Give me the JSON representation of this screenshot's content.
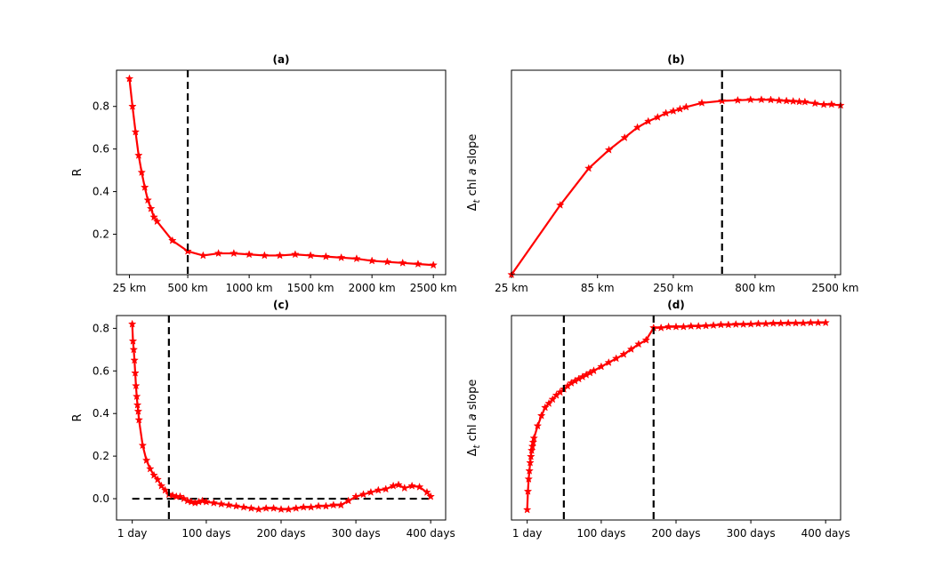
{
  "chart_data": [
    {
      "type": "line",
      "title": "(a)",
      "ylabel": "R",
      "xlabel": "",
      "x_scale": "linear",
      "xlim": [
        -80,
        2600
      ],
      "ylim": [
        0.01,
        0.97
      ],
      "xticks": [
        {
          "value": 25,
          "label": "25 km"
        },
        {
          "value": 500,
          "label": "500 km"
        },
        {
          "value": 1000,
          "label": "1000 km"
        },
        {
          "value": 1500,
          "label": "1500 km"
        },
        {
          "value": 2000,
          "label": "2000 km"
        },
        {
          "value": 2500,
          "label": "2500 km"
        }
      ],
      "yticks": [
        {
          "value": 0.2,
          "label": "0.2"
        },
        {
          "value": 0.4,
          "label": "0.4"
        },
        {
          "value": 0.6,
          "label": "0.6"
        },
        {
          "value": 0.8,
          "label": "0.8"
        }
      ],
      "vlines": [
        500
      ],
      "hlines": [],
      "series": [
        {
          "name": "R",
          "x": [
            25,
            50,
            75,
            100,
            125,
            150,
            175,
            200,
            225,
            250,
            375,
            500,
            625,
            750,
            875,
            1000,
            1125,
            1250,
            1375,
            1500,
            1625,
            1750,
            1875,
            2000,
            2125,
            2250,
            2375,
            2500
          ],
          "y": [
            0.93,
            0.8,
            0.68,
            0.57,
            0.49,
            0.42,
            0.36,
            0.32,
            0.28,
            0.26,
            0.17,
            0.12,
            0.1,
            0.11,
            0.11,
            0.105,
            0.1,
            0.1,
            0.105,
            0.1,
            0.095,
            0.09,
            0.085,
            0.075,
            0.07,
            0.065,
            0.06,
            0.055
          ]
        }
      ]
    },
    {
      "type": "line",
      "title": "(b)",
      "ylabel": "Δt chl a slope",
      "xlabel": "",
      "x_scale": "log",
      "xlim": [
        25,
        2700
      ],
      "ylim": [
        0.0,
        1.0
      ],
      "xticks": [
        {
          "value": 25,
          "label": "25 km"
        },
        {
          "value": 85,
          "label": "85 km"
        },
        {
          "value": 250,
          "label": "250 km"
        },
        {
          "value": 800,
          "label": "800 km"
        },
        {
          "value": 2500,
          "label": "2500 km"
        }
      ],
      "yticks": [],
      "vlines": [
        500
      ],
      "hlines": [],
      "series": [
        {
          "name": "Δt chl a slope",
          "x": [
            25,
            50,
            75,
            100,
            125,
            150,
            175,
            200,
            225,
            250,
            275,
            300,
            375,
            500,
            625,
            750,
            875,
            1000,
            1125,
            1250,
            1375,
            1500,
            1625,
            1875,
            2125,
            2375,
            2700
          ],
          "y": [
            0.0,
            0.34,
            0.52,
            0.61,
            0.67,
            0.72,
            0.75,
            0.77,
            0.79,
            0.8,
            0.81,
            0.82,
            0.84,
            0.85,
            0.853,
            0.856,
            0.856,
            0.855,
            0.852,
            0.85,
            0.848,
            0.846,
            0.845,
            0.838,
            0.832,
            0.833,
            0.828
          ]
        }
      ]
    },
    {
      "type": "line",
      "title": "(c)",
      "ylabel": "R",
      "xlabel": "",
      "x_scale": "linear",
      "xlim": [
        -20,
        420
      ],
      "ylim": [
        -0.1,
        0.86
      ],
      "xticks": [
        {
          "value": 1,
          "label": "1 day"
        },
        {
          "value": 100,
          "label": "100 days"
        },
        {
          "value": 200,
          "label": "200 days"
        },
        {
          "value": 300,
          "label": "300 days"
        },
        {
          "value": 400,
          "label": "400 days"
        }
      ],
      "yticks": [
        {
          "value": 0.0,
          "label": "0.0"
        },
        {
          "value": 0.2,
          "label": "0.2"
        },
        {
          "value": 0.4,
          "label": "0.4"
        },
        {
          "value": 0.6,
          "label": "0.6"
        },
        {
          "value": 0.8,
          "label": "0.8"
        }
      ],
      "vlines": [
        50
      ],
      "hlines": [
        0
      ],
      "series": [
        {
          "name": "R",
          "x": [
            1,
            2,
            3,
            4,
            5,
            6,
            7,
            8,
            9,
            10,
            15,
            20,
            25,
            30,
            35,
            40,
            45,
            50,
            55,
            60,
            65,
            70,
            75,
            80,
            85,
            90,
            95,
            100,
            110,
            120,
            130,
            140,
            150,
            160,
            170,
            180,
            190,
            200,
            210,
            220,
            230,
            240,
            250,
            260,
            270,
            280,
            290,
            300,
            310,
            320,
            330,
            340,
            350,
            357,
            365,
            375,
            385,
            395,
            400
          ],
          "y": [
            0.82,
            0.74,
            0.7,
            0.65,
            0.59,
            0.53,
            0.48,
            0.44,
            0.41,
            0.37,
            0.25,
            0.18,
            0.14,
            0.11,
            0.09,
            0.06,
            0.04,
            0.02,
            0.015,
            0.01,
            0.01,
            0.0,
            -0.01,
            -0.015,
            -0.02,
            -0.015,
            -0.01,
            -0.015,
            -0.02,
            -0.025,
            -0.03,
            -0.035,
            -0.04,
            -0.045,
            -0.05,
            -0.045,
            -0.045,
            -0.05,
            -0.05,
            -0.045,
            -0.04,
            -0.04,
            -0.035,
            -0.035,
            -0.03,
            -0.03,
            -0.01,
            0.01,
            0.02,
            0.03,
            0.04,
            0.045,
            0.06,
            0.065,
            0.05,
            0.06,
            0.055,
            0.03,
            0.01
          ]
        }
      ]
    },
    {
      "type": "line",
      "title": "(d)",
      "ylabel": "Δt chl a slope",
      "xlabel": "",
      "x_scale": "linear",
      "xlim": [
        -20,
        420
      ],
      "ylim": [
        0.0,
        1.0
      ],
      "xticks": [
        {
          "value": 1,
          "label": "1 day"
        },
        {
          "value": 100,
          "label": "100 days"
        },
        {
          "value": 200,
          "label": "200 days"
        },
        {
          "value": 300,
          "label": "300 days"
        },
        {
          "value": 400,
          "label": "400 days"
        }
      ],
      "yticks": [],
      "vlines": [
        50,
        170
      ],
      "hlines": [],
      "series": [
        {
          "name": "Δt chl a slope",
          "x": [
            1,
            2,
            3,
            4,
            5,
            6,
            7,
            8,
            9,
            10,
            15,
            20,
            25,
            30,
            35,
            40,
            45,
            50,
            55,
            60,
            65,
            70,
            75,
            80,
            85,
            90,
            100,
            110,
            120,
            130,
            140,
            150,
            160,
            170,
            180,
            190,
            200,
            210,
            220,
            230,
            240,
            250,
            260,
            270,
            280,
            290,
            300,
            310,
            320,
            330,
            340,
            350,
            360,
            370,
            380,
            390,
            400
          ],
          "y": [
            0.05,
            0.14,
            0.2,
            0.24,
            0.28,
            0.31,
            0.34,
            0.36,
            0.38,
            0.4,
            0.46,
            0.51,
            0.55,
            0.57,
            0.59,
            0.61,
            0.625,
            0.64,
            0.655,
            0.67,
            0.68,
            0.69,
            0.7,
            0.71,
            0.72,
            0.73,
            0.75,
            0.77,
            0.79,
            0.81,
            0.835,
            0.86,
            0.88,
            0.94,
            0.94,
            0.945,
            0.945,
            0.945,
            0.948,
            0.948,
            0.95,
            0.952,
            0.955,
            0.955,
            0.957,
            0.957,
            0.958,
            0.96,
            0.96,
            0.962,
            0.962,
            0.963,
            0.963,
            0.963,
            0.965,
            0.965,
            0.965
          ]
        }
      ]
    }
  ]
}
